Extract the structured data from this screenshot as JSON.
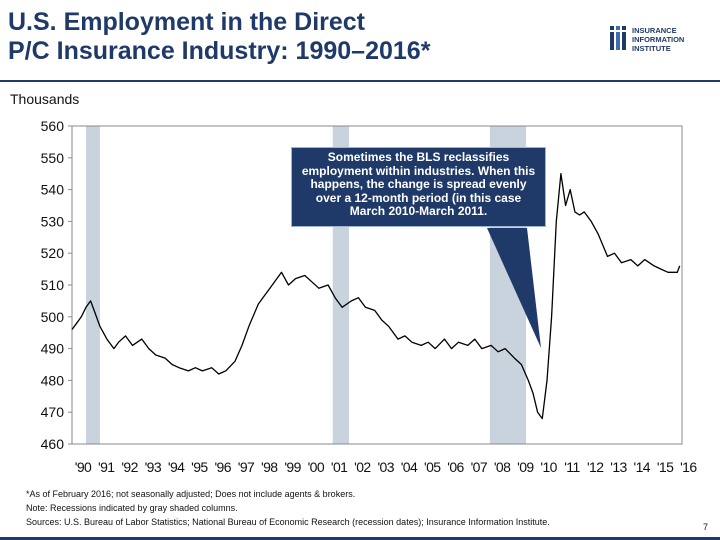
{
  "header": {
    "title_line1": "U.S. Employment in the Direct",
    "title_line2": "P/C Insurance Industry: 1990–2016*",
    "logo_line1": "INSURANCE",
    "logo_line2": "INFORMATION",
    "logo_line3": "INSTITUTE"
  },
  "callout": {
    "text": "Sometimes the BLS reclassifies employment within industries. When this happens, the change is spread evenly over a 12-month period (in this case March 2010-March 2011."
  },
  "footnotes": {
    "line1": "*As of February 2016; not seasonally adjusted; Does not include agents & brokers.",
    "line2": "Note: Recessions indicated by gray shaded columns.",
    "line3": "Sources: U.S. Bureau of Labor Statistics;  National Bureau of Economic Research (recession dates); Insurance Information Institute."
  },
  "page_number": "7",
  "colors": {
    "navy": "#1f3a68",
    "recession": "#c9d3de",
    "line": "#000000"
  },
  "chart_data": {
    "type": "line",
    "title": "U.S. Employment in the Direct P/C Insurance Industry: 1990–2016*",
    "ylabel": "Thousands",
    "xlabel": "",
    "ylim": [
      460,
      560
    ],
    "xlim": [
      1990.0,
      2016.2
    ],
    "yticks": [
      460,
      470,
      480,
      490,
      500,
      510,
      520,
      530,
      540,
      550,
      560
    ],
    "xtick_labels": [
      "'90",
      "'91",
      "'92",
      "'93",
      "'94",
      "'95",
      "'96",
      "'97",
      "'98",
      "'99",
      "'00",
      "'01",
      "'02",
      "'03",
      "'04",
      "'05",
      "'06",
      "'07",
      "'08",
      "'09",
      "'10",
      "'11",
      "'12",
      "'13",
      "'14",
      "'15",
      "'16"
    ],
    "xtick_years": [
      1990,
      1991,
      1992,
      1993,
      1994,
      1995,
      1996,
      1997,
      1998,
      1999,
      2000,
      2001,
      2002,
      2003,
      2004,
      2005,
      2006,
      2007,
      2008,
      2009,
      2010,
      2011,
      2012,
      2013,
      2014,
      2015,
      2016
    ],
    "recessions": [
      {
        "start": 1990.6,
        "end": 1991.2
      },
      {
        "start": 2001.2,
        "end": 2001.9
      },
      {
        "start": 2007.95,
        "end": 2009.5
      }
    ],
    "grid": false,
    "series": [
      {
        "name": "Direct P/C insurance employment",
        "x": [
          1990.0,
          1990.2,
          1990.4,
          1990.6,
          1990.8,
          1991.0,
          1991.2,
          1991.5,
          1991.8,
          1992.0,
          1992.3,
          1992.6,
          1993.0,
          1993.3,
          1993.6,
          1994.0,
          1994.3,
          1994.6,
          1995.0,
          1995.3,
          1995.6,
          1996.0,
          1996.3,
          1996.6,
          1997.0,
          1997.3,
          1997.6,
          1998.0,
          1998.2,
          1998.5,
          1998.8,
          1999.0,
          1999.3,
          1999.6,
          2000.0,
          2000.3,
          2000.6,
          2001.0,
          2001.3,
          2001.6,
          2002.0,
          2002.3,
          2002.6,
          2003.0,
          2003.3,
          2003.6,
          2004.0,
          2004.3,
          2004.6,
          2005.0,
          2005.3,
          2005.6,
          2006.0,
          2006.3,
          2006.6,
          2007.0,
          2007.3,
          2007.6,
          2008.0,
          2008.3,
          2008.6,
          2009.0,
          2009.3,
          2009.6,
          2009.8,
          2010.0,
          2010.2,
          2010.4,
          2010.6,
          2010.8,
          2011.0,
          2011.2,
          2011.4,
          2011.6,
          2011.8,
          2012.0,
          2012.3,
          2012.6,
          2013.0,
          2013.3,
          2013.6,
          2014.0,
          2014.3,
          2014.6,
          2015.0,
          2015.3,
          2015.6,
          2016.0,
          2016.1
        ],
        "values": [
          496,
          498,
          500,
          503,
          505,
          501,
          497,
          493,
          490,
          492,
          494,
          491,
          493,
          490,
          488,
          487,
          485,
          484,
          483,
          484,
          483,
          484,
          482,
          483,
          486,
          491,
          497,
          504,
          506,
          509,
          512,
          514,
          510,
          512,
          513,
          511,
          509,
          510,
          506,
          503,
          505,
          506,
          503,
          502,
          499,
          497,
          493,
          494,
          492,
          491,
          492,
          490,
          493,
          490,
          492,
          491,
          493,
          490,
          491,
          489,
          490,
          487,
          485,
          480,
          476,
          470,
          468,
          480,
          500,
          530,
          545,
          535,
          540,
          533,
          532,
          533,
          530,
          526,
          519,
          520,
          517,
          518,
          516,
          518,
          516,
          515,
          514,
          514,
          516
        ]
      }
    ]
  }
}
